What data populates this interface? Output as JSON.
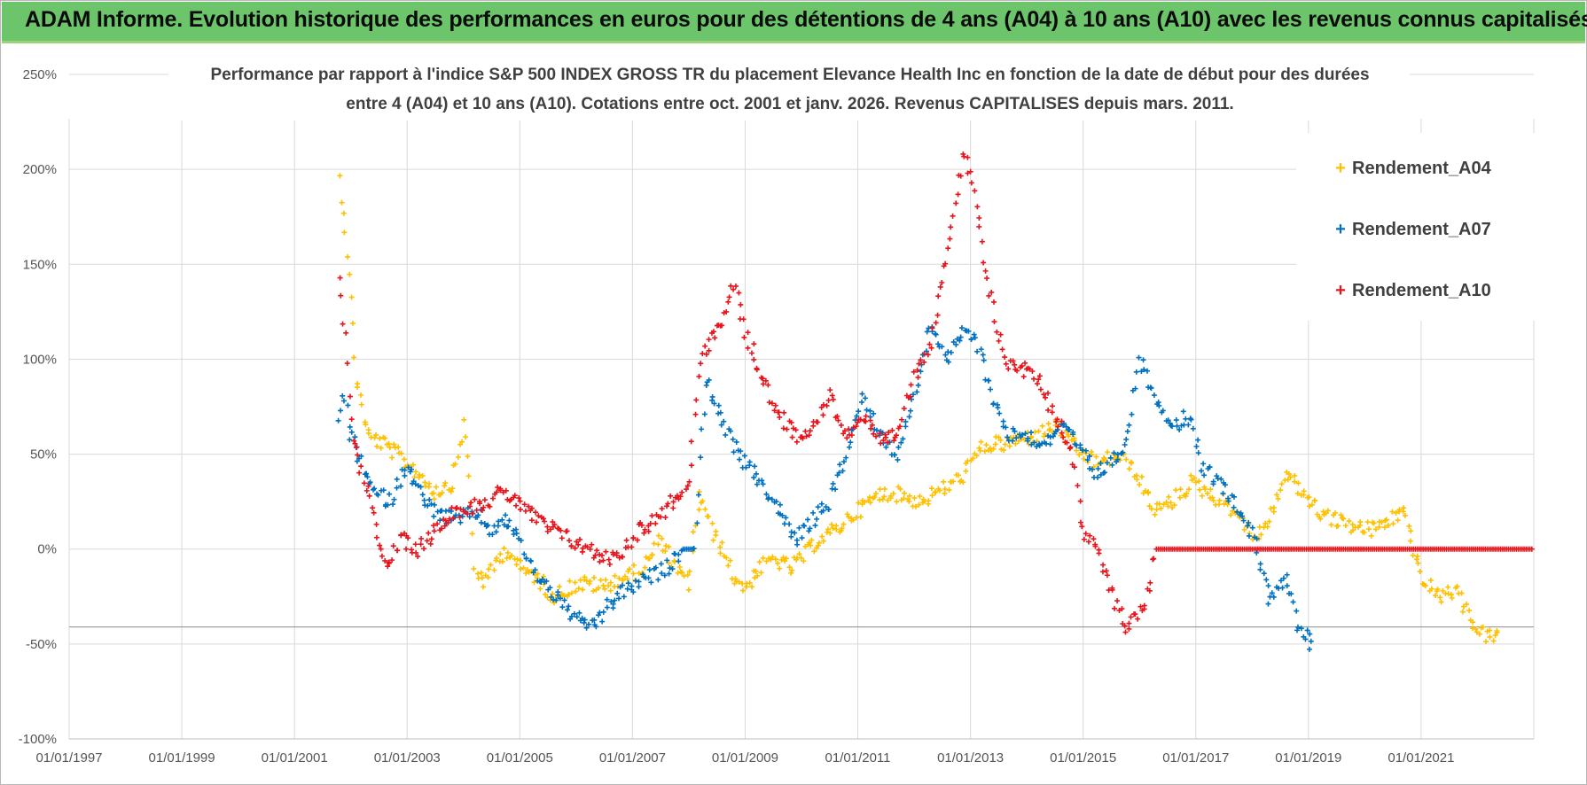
{
  "banner": {
    "title": "ADAM Informe. Evolution historique des performances en euros pour des détentions de 4 ans (A04) à 10 ans (A10) avec les revenus connus capitalisés"
  },
  "colors": {
    "A04": "#ffc000",
    "A07": "#0070c0",
    "A10": "#e8141c",
    "banner": "#6cc56b"
  },
  "chart_data": {
    "type": "scatter",
    "title_line1": "Performance par rapport à l'indice S&P 500 INDEX GROSS TR  du placement Elevance Health Inc en fonction de la date de début pour des durées",
    "title_line2": "entre 4 (A04) et 10 ans (A10).  Cotations entre oct. 2001 et janv. 2026.  Revenus CAPITALISES depuis mars. 2011.",
    "x_ticks": [
      "01/01/1997",
      "01/01/1999",
      "01/01/2001",
      "01/01/2003",
      "01/01/2005",
      "01/01/2007",
      "01/01/2009",
      "01/01/2011",
      "01/01/2013",
      "01/01/2015",
      "01/01/2017",
      "01/01/2019",
      "01/01/2021"
    ],
    "y_ticks": [
      "250%",
      "200%",
      "150%",
      "100%",
      "50%",
      "0%",
      "-50%",
      "-100%"
    ],
    "xlim": [
      1997.0,
      2023.0
    ],
    "ylim": [
      -100,
      250
    ],
    "legend_position": "top-right",
    "series": [
      {
        "name": "Rendement_A04",
        "color": "#ffc000",
        "points": [
          [
            2001.8,
            195
          ],
          [
            2001.9,
            170
          ],
          [
            2002.0,
            130
          ],
          [
            2002.1,
            90
          ],
          [
            2002.3,
            60
          ],
          [
            2002.6,
            55
          ],
          [
            2002.9,
            48
          ],
          [
            2003.2,
            40
          ],
          [
            2003.5,
            30
          ],
          [
            2003.8,
            35
          ],
          [
            2004.0,
            65
          ],
          [
            2004.1,
            40
          ],
          [
            2004.2,
            -10
          ],
          [
            2004.4,
            -18
          ],
          [
            2004.6,
            -5
          ],
          [
            2004.8,
            0
          ],
          [
            2005.0,
            -10
          ],
          [
            2005.3,
            -15
          ],
          [
            2005.6,
            -25
          ],
          [
            2005.9,
            -20
          ],
          [
            2006.2,
            -18
          ],
          [
            2006.5,
            -20
          ],
          [
            2006.8,
            -15
          ],
          [
            2007.1,
            -12
          ],
          [
            2007.3,
            -5
          ],
          [
            2007.5,
            5
          ],
          [
            2007.8,
            -12
          ],
          [
            2008.0,
            -18
          ],
          [
            2008.2,
            30
          ],
          [
            2008.4,
            10
          ],
          [
            2008.6,
            0
          ],
          [
            2008.8,
            -15
          ],
          [
            2009.0,
            -20
          ],
          [
            2009.2,
            -12
          ],
          [
            2009.5,
            -5
          ],
          [
            2009.8,
            -10
          ],
          [
            2010.0,
            -5
          ],
          [
            2010.3,
            5
          ],
          [
            2010.6,
            10
          ],
          [
            2010.9,
            18
          ],
          [
            2011.2,
            25
          ],
          [
            2011.5,
            30
          ],
          [
            2011.8,
            28
          ],
          [
            2012.1,
            25
          ],
          [
            2012.4,
            30
          ],
          [
            2012.7,
            35
          ],
          [
            2012.9,
            40
          ],
          [
            2013.1,
            50
          ],
          [
            2013.3,
            55
          ],
          [
            2013.6,
            55
          ],
          [
            2013.9,
            58
          ],
          [
            2014.2,
            60
          ],
          [
            2014.5,
            65
          ],
          [
            2014.8,
            55
          ],
          [
            2015.0,
            50
          ],
          [
            2015.3,
            45
          ],
          [
            2015.6,
            50
          ],
          [
            2015.9,
            42
          ],
          [
            2016.1,
            30
          ],
          [
            2016.3,
            20
          ],
          [
            2016.6,
            25
          ],
          [
            2016.9,
            35
          ],
          [
            2017.2,
            30
          ],
          [
            2017.5,
            25
          ],
          [
            2017.8,
            18
          ],
          [
            2018.0,
            5
          ],
          [
            2018.3,
            15
          ],
          [
            2018.6,
            40
          ],
          [
            2018.9,
            30
          ],
          [
            2019.2,
            20
          ],
          [
            2019.5,
            15
          ],
          [
            2019.8,
            12
          ],
          [
            2020.1,
            10
          ],
          [
            2020.4,
            15
          ],
          [
            2020.7,
            20
          ],
          [
            2021.0,
            -15
          ],
          [
            2021.3,
            -25
          ],
          [
            2021.6,
            -22
          ],
          [
            2021.9,
            -38
          ],
          [
            2022.1,
            -45
          ],
          [
            2022.4,
            -47
          ]
        ]
      },
      {
        "name": "Rendement_A07",
        "color": "#0070c0",
        "points": [
          [
            2001.8,
            70
          ],
          [
            2001.9,
            80
          ],
          [
            2002.0,
            60
          ],
          [
            2002.2,
            45
          ],
          [
            2002.4,
            30
          ],
          [
            2002.7,
            25
          ],
          [
            2003.0,
            45
          ],
          [
            2003.3,
            25
          ],
          [
            2003.6,
            18
          ],
          [
            2003.9,
            15
          ],
          [
            2004.2,
            20
          ],
          [
            2004.5,
            10
          ],
          [
            2004.8,
            15
          ],
          [
            2005.0,
            5
          ],
          [
            2005.2,
            -10
          ],
          [
            2005.5,
            -20
          ],
          [
            2005.8,
            -30
          ],
          [
            2006.1,
            -40
          ],
          [
            2006.4,
            -38
          ],
          [
            2006.7,
            -25
          ],
          [
            2007.0,
            -20
          ],
          [
            2007.3,
            -15
          ],
          [
            2007.6,
            -10
          ],
          [
            2007.9,
            0
          ],
          [
            2008.1,
            0
          ],
          [
            2008.3,
            90
          ],
          [
            2008.5,
            75
          ],
          [
            2008.7,
            60
          ],
          [
            2009.0,
            45
          ],
          [
            2009.3,
            35
          ],
          [
            2009.6,
            20
          ],
          [
            2009.9,
            5
          ],
          [
            2010.2,
            15
          ],
          [
            2010.5,
            25
          ],
          [
            2010.8,
            50
          ],
          [
            2011.1,
            80
          ],
          [
            2011.4,
            60
          ],
          [
            2011.7,
            50
          ],
          [
            2012.0,
            80
          ],
          [
            2012.3,
            120
          ],
          [
            2012.6,
            100
          ],
          [
            2012.9,
            115
          ],
          [
            2013.1,
            110
          ],
          [
            2013.4,
            80
          ],
          [
            2013.7,
            60
          ],
          [
            2014.0,
            60
          ],
          [
            2014.3,
            55
          ],
          [
            2014.6,
            65
          ],
          [
            2014.9,
            55
          ],
          [
            2015.2,
            40
          ],
          [
            2015.5,
            45
          ],
          [
            2015.8,
            60
          ],
          [
            2016.0,
            100
          ],
          [
            2016.3,
            80
          ],
          [
            2016.6,
            65
          ],
          [
            2016.9,
            70
          ],
          [
            2017.1,
            45
          ],
          [
            2017.4,
            35
          ],
          [
            2017.7,
            25
          ],
          [
            2017.9,
            15
          ],
          [
            2018.1,
            0
          ],
          [
            2018.3,
            -25
          ],
          [
            2018.6,
            -15
          ],
          [
            2018.8,
            -40
          ],
          [
            2019.0,
            -48
          ],
          [
            2019.1,
            -55
          ]
        ]
      },
      {
        "name": "Rendement_A10",
        "color": "#e8141c",
        "points": [
          [
            2001.8,
            140
          ],
          [
            2001.9,
            110
          ],
          [
            2002.0,
            65
          ],
          [
            2002.2,
            40
          ],
          [
            2002.4,
            20
          ],
          [
            2002.6,
            -10
          ],
          [
            2002.9,
            5
          ],
          [
            2003.2,
            0
          ],
          [
            2003.5,
            10
          ],
          [
            2003.8,
            20
          ],
          [
            2004.1,
            22
          ],
          [
            2004.4,
            25
          ],
          [
            2004.7,
            30
          ],
          [
            2005.0,
            25
          ],
          [
            2005.3,
            15
          ],
          [
            2005.6,
            10
          ],
          [
            2005.9,
            5
          ],
          [
            2006.2,
            0
          ],
          [
            2006.5,
            -5
          ],
          [
            2006.8,
            -2
          ],
          [
            2007.1,
            10
          ],
          [
            2007.4,
            15
          ],
          [
            2007.7,
            25
          ],
          [
            2008.0,
            35
          ],
          [
            2008.2,
            100
          ],
          [
            2008.4,
            110
          ],
          [
            2008.6,
            120
          ],
          [
            2008.8,
            140
          ],
          [
            2009.0,
            115
          ],
          [
            2009.3,
            90
          ],
          [
            2009.6,
            70
          ],
          [
            2009.9,
            60
          ],
          [
            2010.2,
            65
          ],
          [
            2010.5,
            80
          ],
          [
            2010.8,
            60
          ],
          [
            2011.1,
            70
          ],
          [
            2011.4,
            55
          ],
          [
            2011.7,
            60
          ],
          [
            2012.0,
            90
          ],
          [
            2012.3,
            110
          ],
          [
            2012.6,
            160
          ],
          [
            2012.9,
            210
          ],
          [
            2013.1,
            180
          ],
          [
            2013.3,
            140
          ],
          [
            2013.6,
            100
          ],
          [
            2013.9,
            95
          ],
          [
            2014.2,
            90
          ],
          [
            2014.5,
            70
          ],
          [
            2014.8,
            55
          ],
          [
            2015.0,
            10
          ],
          [
            2015.3,
            -5
          ],
          [
            2015.6,
            -30
          ],
          [
            2015.8,
            -42
          ],
          [
            2016.1,
            -28
          ],
          [
            2016.3,
            0
          ],
          [
            2017.0,
            0
          ],
          [
            2018.0,
            0
          ],
          [
            2019.0,
            0
          ],
          [
            2020.0,
            0
          ],
          [
            2021.0,
            0
          ],
          [
            2022.0,
            0
          ],
          [
            2023.0,
            0
          ]
        ]
      }
    ],
    "horizontal_reference_line": -41
  }
}
